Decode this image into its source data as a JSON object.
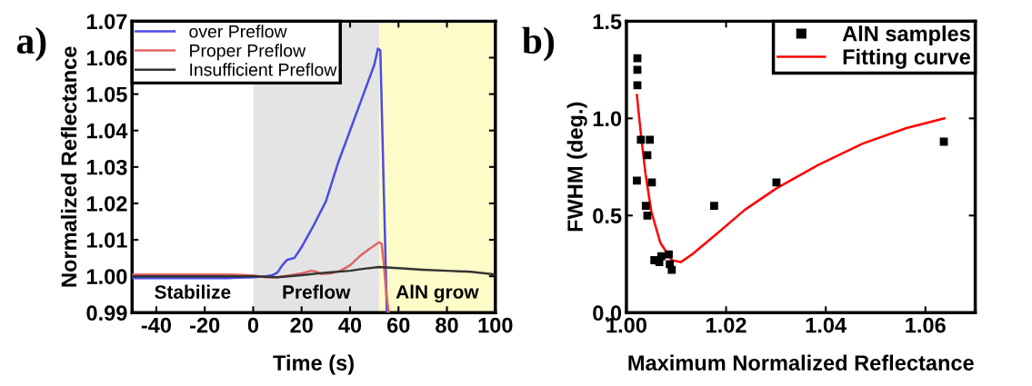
{
  "chart_data": [
    {
      "type": "line",
      "title": "a)",
      "xlabel": "Time (s)",
      "ylabel": "Normalized Reflectance",
      "xlim": [
        -50,
        100
      ],
      "ylim": [
        0.99,
        1.07
      ],
      "xticks": [
        -40,
        -20,
        0,
        20,
        40,
        60,
        80,
        100
      ],
      "yticks": [
        {
          "value": 0.99,
          "label": "0.99"
        },
        {
          "value": 1.0,
          "label": "1.00"
        },
        {
          "value": 1.01,
          "label": "1.01"
        },
        {
          "value": 1.02,
          "label": "1.02"
        },
        {
          "value": 1.03,
          "label": "1.03"
        },
        {
          "value": 1.04,
          "label": "1.04"
        },
        {
          "value": 1.05,
          "label": "1.05"
        },
        {
          "value": 1.06,
          "label": "1.06"
        },
        {
          "value": 1.07,
          "label": "1.07"
        }
      ],
      "bands": [
        {
          "axis": "x",
          "from": 0,
          "to": 52,
          "label": "Preflow",
          "color": "#e4e4e4"
        },
        {
          "axis": "x",
          "from": 52,
          "to": 100,
          "label": "AlN grow",
          "color": "#fdfbc8"
        },
        {
          "axis": "x",
          "from": -50,
          "to": 0,
          "label": "Stabilize",
          "color": "#ffffff"
        }
      ],
      "legend": "top left",
      "grid": false,
      "line_style": "solid",
      "marker": "none",
      "series": [
        {
          "name": "over Preflow",
          "color": "#4b4be6",
          "x": [
            -50,
            -40,
            -30,
            -20,
            -10,
            0,
            5,
            8,
            10,
            12,
            14,
            17,
            20,
            25,
            30,
            35,
            40,
            45,
            50,
            51.5,
            52.5,
            55.2
          ],
          "values": [
            0.9995,
            0.9995,
            0.9995,
            0.9995,
            0.9995,
            0.9997,
            1.0,
            1.0003,
            1.001,
            1.003,
            1.0045,
            1.005,
            1.008,
            1.014,
            1.0205,
            1.031,
            1.04,
            1.049,
            1.058,
            1.0625,
            1.062,
            0.99
          ]
        },
        {
          "name": "Proper Preflow",
          "color": "#e06464",
          "x": [
            -50,
            -40,
            -30,
            -20,
            -10,
            0,
            5,
            10,
            15,
            20,
            24,
            26,
            28,
            32,
            36,
            40,
            44,
            48,
            52,
            53,
            54,
            55,
            56
          ],
          "values": [
            1.0005,
            1.0005,
            1.0005,
            1.0005,
            1.0005,
            1.0002,
            0.9997,
            0.9997,
            1.0002,
            1.0008,
            1.0015,
            1.0013,
            1.0006,
            1.0008,
            1.0015,
            1.003,
            1.0055,
            1.0075,
            1.0093,
            1.009,
            1.003,
            0.995,
            0.99
          ]
        },
        {
          "name": "Insufficient Preflow",
          "color": "#333333",
          "x": [
            -50,
            -40,
            -30,
            -20,
            -10,
            0,
            10,
            20,
            30,
            40,
            45,
            52,
            60,
            70,
            80,
            90,
            100
          ],
          "values": [
            1.0,
            1.0,
            1.0,
            1.0,
            1.0,
            1.0,
            0.9997,
            1.0003,
            1.001,
            1.0015,
            1.002,
            1.0025,
            1.0022,
            1.0018,
            1.0015,
            1.0012,
            1.0005
          ]
        }
      ]
    },
    {
      "type": "scatter",
      "title": "b)",
      "xlabel": "Maximum Normalized Reflectance",
      "ylabel": "FWHM (deg.)",
      "xlim": [
        1.0,
        1.07
      ],
      "ylim": [
        0.0,
        1.5
      ],
      "xticks": [
        {
          "value": 1.0,
          "label": "1.00"
        },
        {
          "value": 1.02,
          "label": "1.02"
        },
        {
          "value": 1.04,
          "label": "1.04"
        },
        {
          "value": 1.06,
          "label": "1.06"
        }
      ],
      "yticks": [
        {
          "value": 0.0,
          "label": "0.0"
        },
        {
          "value": 0.5,
          "label": "0.5"
        },
        {
          "value": 1.0,
          "label": "1.0"
        },
        {
          "value": 1.5,
          "label": "1.5"
        }
      ],
      "legend": "top right",
      "grid": false,
      "series": [
        {
          "name": "AlN samples",
          "type": "scatter",
          "marker": "square",
          "color": "#000000",
          "x": [
            1.0022,
            1.0022,
            1.0022,
            1.0029,
            1.0047,
            1.0042,
            1.0021,
            1.0051,
            1.0039,
            1.0042,
            1.0056,
            1.0066,
            1.007,
            1.0085,
            1.0087,
            1.0091,
            1.0176,
            1.0301,
            1.0637
          ],
          "values": [
            1.31,
            1.25,
            1.17,
            0.89,
            0.89,
            0.81,
            0.68,
            0.67,
            0.55,
            0.5,
            0.27,
            0.26,
            0.29,
            0.3,
            0.25,
            0.22,
            0.55,
            0.67,
            0.88
          ]
        },
        {
          "name": "Fitting curve",
          "type": "line",
          "line_style": "solid",
          "marker": "none",
          "color": "#ff0000",
          "x": [
            1.0021,
            1.0029,
            1.0038,
            1.005,
            1.0068,
            1.0091,
            1.0109,
            1.0132,
            1.0174,
            1.0238,
            1.0301,
            1.0385,
            1.0474,
            1.0562,
            1.0638
          ],
          "values": [
            1.12,
            0.92,
            0.72,
            0.52,
            0.36,
            0.27,
            0.26,
            0.3,
            0.39,
            0.53,
            0.64,
            0.76,
            0.87,
            0.95,
            1.0
          ]
        }
      ]
    }
  ]
}
